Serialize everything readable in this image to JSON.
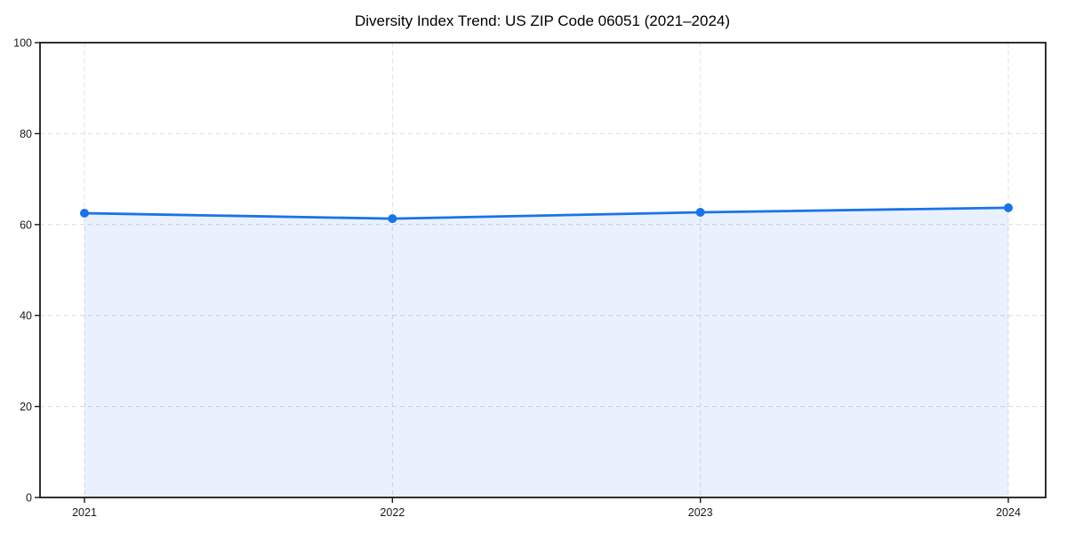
{
  "page": {
    "background": "#ffffff"
  },
  "chart_data": {
    "type": "line",
    "area_fill": true,
    "title": "Diversity Index Trend: US ZIP Code 06051 (2021–2024)",
    "xlabel": "",
    "ylabel": "",
    "x": [
      2021,
      2022,
      2023,
      2024
    ],
    "series": [
      {
        "name": "Diversity Index",
        "values": [
          62.5,
          61.3,
          62.7,
          63.7
        ]
      }
    ],
    "ylim": [
      0,
      100
    ],
    "yticks": [
      0,
      20,
      40,
      60,
      80,
      100
    ],
    "grid": "dashed-both-axes",
    "legend": "none",
    "markers": "circle",
    "colors": {
      "line": "#1a73e8",
      "marker": "#1a73e8",
      "fill": "rgba(26,115,232,0.10)",
      "grid": "#dcdcdc",
      "spine": "#1a1a1a",
      "tick_label": "#1a1a1a",
      "title": "#000000",
      "background": "#ffffff"
    }
  }
}
